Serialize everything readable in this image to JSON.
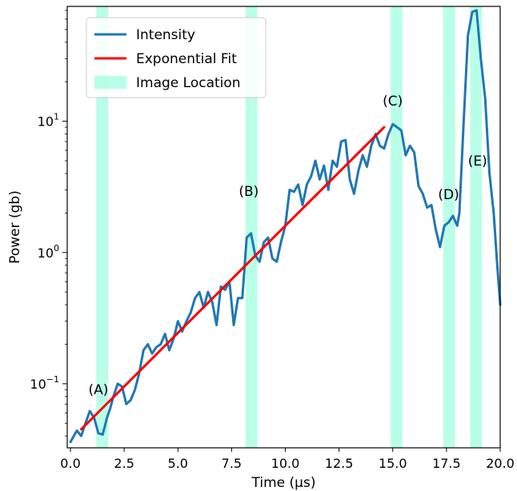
{
  "chart_data": {
    "type": "line",
    "xlabel": "Time (μs)",
    "ylabel": "Power (gb)",
    "xlim": [
      -0.15,
      20.0
    ],
    "ylim": [
      0.0325,
      75
    ],
    "yscale": "log",
    "x_ticks": [
      {
        "value": 0.0,
        "label": "0.0"
      },
      {
        "value": 2.5,
        "label": "2.5"
      },
      {
        "value": 5.0,
        "label": "5.0"
      },
      {
        "value": 7.5,
        "label": "7.5"
      },
      {
        "value": 10.0,
        "label": "10.0"
      },
      {
        "value": 12.5,
        "label": "12.5"
      },
      {
        "value": 15.0,
        "label": "15.0"
      },
      {
        "value": 17.5,
        "label": "17.5"
      },
      {
        "value": 20.0,
        "label": "20.0"
      }
    ],
    "y_ticks": [
      {
        "value": 0.1,
        "base": "10",
        "exp": "−1"
      },
      {
        "value": 1,
        "base": "10",
        "exp": "0"
      },
      {
        "value": 10,
        "base": "10",
        "exp": "1"
      }
    ],
    "legend": {
      "position": "upper-left",
      "entries": [
        {
          "label": "Intensity",
          "kind": "line",
          "color": "#1f77b4"
        },
        {
          "label": "Exponential Fit",
          "kind": "line",
          "color": "#ff0000"
        },
        {
          "label": "Image Location",
          "kind": "band",
          "color": "#7fffd4"
        }
      ]
    },
    "bands": [
      {
        "x0": 1.2,
        "x1": 1.75
      },
      {
        "x0": 8.15,
        "x1": 8.7
      },
      {
        "x0": 14.9,
        "x1": 15.45
      },
      {
        "x0": 17.35,
        "x1": 17.9
      },
      {
        "x0": 18.6,
        "x1": 19.15
      }
    ],
    "annotations": [
      {
        "text": "(A)",
        "x": 1.3,
        "y": 0.083
      },
      {
        "text": "(B)",
        "x": 8.3,
        "y": 2.7
      },
      {
        "text": "(C)",
        "x": 15.0,
        "y": 13.2
      },
      {
        "text": "(D)",
        "x": 17.6,
        "y": 2.55
      },
      {
        "text": "(E)",
        "x": 18.95,
        "y": 4.6
      }
    ],
    "series": [
      {
        "name": "Intensity",
        "color": "#1f77b4",
        "x": [
          0.0,
          0.3,
          0.5,
          0.7,
          0.9,
          1.1,
          1.3,
          1.5,
          1.7,
          1.85,
          2.0,
          2.2,
          2.4,
          2.6,
          2.8,
          3.0,
          3.2,
          3.4,
          3.6,
          3.8,
          4.0,
          4.2,
          4.4,
          4.6,
          4.8,
          5.0,
          5.2,
          5.4,
          5.6,
          5.8,
          6.0,
          6.2,
          6.4,
          6.6,
          6.8,
          7.0,
          7.2,
          7.4,
          7.6,
          7.8,
          8.0,
          8.2,
          8.4,
          8.6,
          8.8,
          9.0,
          9.2,
          9.4,
          9.6,
          9.8,
          10.0,
          10.2,
          10.4,
          10.6,
          10.8,
          11.0,
          11.2,
          11.4,
          11.6,
          11.8,
          12.0,
          12.2,
          12.4,
          12.6,
          12.8,
          13.0,
          13.2,
          13.4,
          13.6,
          13.8,
          14.0,
          14.2,
          14.4,
          14.6,
          14.8,
          15.0,
          15.2,
          15.4,
          15.6,
          15.8,
          16.0,
          16.2,
          16.4,
          16.6,
          16.8,
          17.0,
          17.2,
          17.4,
          17.6,
          17.8,
          18.0,
          18.1,
          18.3,
          18.5,
          18.7,
          18.9,
          19.1,
          19.3,
          19.5,
          19.7,
          19.85,
          20.0
        ],
        "y": [
          0.036,
          0.044,
          0.04,
          0.05,
          0.062,
          0.055,
          0.042,
          0.041,
          0.055,
          0.065,
          0.08,
          0.1,
          0.095,
          0.07,
          0.075,
          0.09,
          0.12,
          0.18,
          0.2,
          0.17,
          0.19,
          0.2,
          0.24,
          0.18,
          0.22,
          0.3,
          0.25,
          0.3,
          0.35,
          0.45,
          0.5,
          0.38,
          0.5,
          0.42,
          0.28,
          0.55,
          0.52,
          0.6,
          0.28,
          0.45,
          0.45,
          1.3,
          1.4,
          0.95,
          0.85,
          1.2,
          1.3,
          0.9,
          0.85,
          1.2,
          1.6,
          3.0,
          2.9,
          3.3,
          2.3,
          3.3,
          3.8,
          5.0,
          3.6,
          4.6,
          3.0,
          5.0,
          4.5,
          7.0,
          7.2,
          3.6,
          2.8,
          4.2,
          5.5,
          4.5,
          6.5,
          8.0,
          6.5,
          6.2,
          8.0,
          9.5,
          9.0,
          8.5,
          5.5,
          6.5,
          5.8,
          3.2,
          2.8,
          2.2,
          2.3,
          1.5,
          1.1,
          1.6,
          1.7,
          1.9,
          1.6,
          2.0,
          10.0,
          45.0,
          68.0,
          70.0,
          30.0,
          15.0,
          4.0,
          2.0,
          0.85,
          0.4
        ]
      },
      {
        "name": "Exponential Fit",
        "color": "#ff0000",
        "x": [
          0.5,
          14.6
        ],
        "y": [
          0.045,
          9.0
        ]
      }
    ]
  }
}
